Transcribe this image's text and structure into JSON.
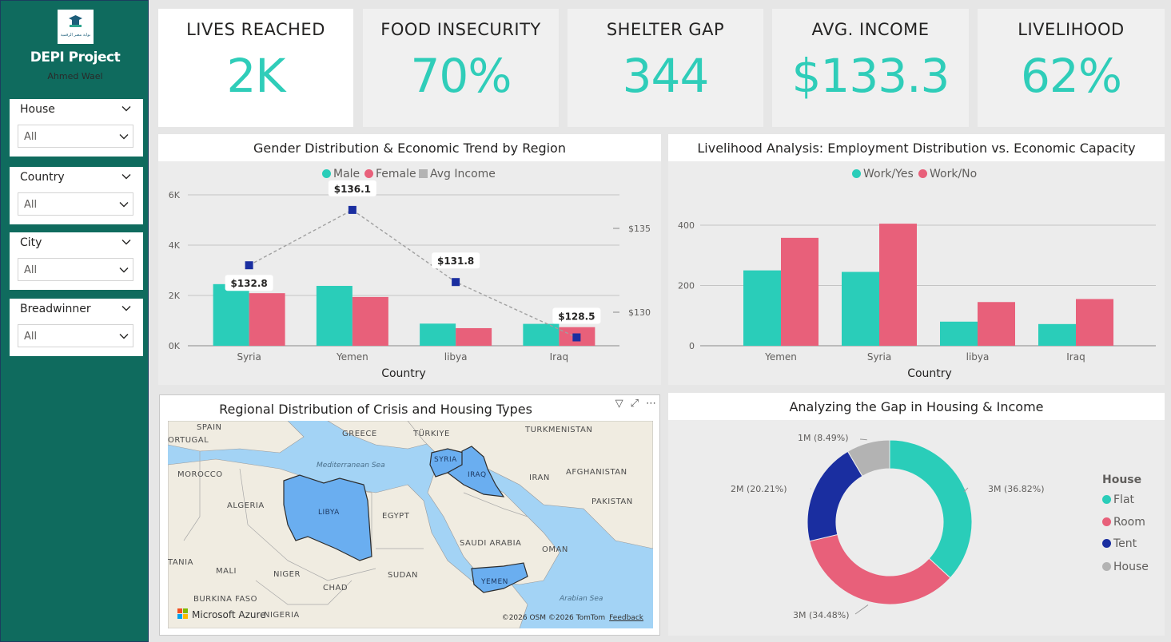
{
  "sidebar": {
    "title": "DEPI Project",
    "author": "Ahmed Wael",
    "logo_text": "بوابة مصر الرقمية",
    "slicers": [
      {
        "label": "House",
        "value": "All"
      },
      {
        "label": "Country",
        "value": "All"
      },
      {
        "label": "City",
        "value": "All"
      },
      {
        "label": "Breadwinner",
        "value": "All"
      }
    ]
  },
  "kpis": [
    {
      "label": "LIVES REACHED",
      "value": "2K"
    },
    {
      "label": "FOOD INSECURITY",
      "value": "70%"
    },
    {
      "label": "SHELTER GAP",
      "value": "344"
    },
    {
      "label": "AVG. INCOME",
      "value": "$133.3"
    },
    {
      "label": "LIVELIHOOD",
      "value": "62%"
    }
  ],
  "colors": {
    "sidebar": "#0f6b5e",
    "accent": "#2fcdb9",
    "male": "#2acdb9",
    "female": "#e8607a",
    "avg_income": "#1a2ea0",
    "tent": "#1a2ea0",
    "house": "#b3b3b3"
  },
  "chart_data": [
    {
      "type": "bar",
      "title": "Gender Distribution & Economic Trend by Region",
      "xlabel": "Country",
      "categories": [
        "Syria",
        "Yemen",
        "libya",
        "Iraq"
      ],
      "ylim": [
        0,
        6000
      ],
      "y_ticks": [
        "0K",
        "2K",
        "4K",
        "6K"
      ],
      "y2_ticks": [
        "$130",
        "$135"
      ],
      "y2lim": [
        128,
        137
      ],
      "legend": [
        "Male",
        "Female",
        "Avg Income"
      ],
      "series": [
        {
          "name": "Male",
          "values": [
            2450,
            2380,
            880,
            870
          ]
        },
        {
          "name": "Female",
          "values": [
            2090,
            1940,
            700,
            740
          ]
        },
        {
          "name": "Avg Income",
          "values": [
            132.8,
            136.1,
            131.8,
            128.5
          ],
          "labels": [
            "$132.8",
            "$136.1",
            "$131.8",
            "$128.5"
          ]
        }
      ]
    },
    {
      "type": "bar",
      "title": "Livelihood Analysis: Employment Distribution vs. Economic Capacity",
      "xlabel": "Country",
      "categories": [
        "Yemen",
        "Syria",
        "libya",
        "Iraq"
      ],
      "ylim": [
        0,
        400
      ],
      "y_ticks": [
        "0",
        "200",
        "400"
      ],
      "legend": [
        "Work/Yes",
        "Work/No"
      ],
      "series": [
        {
          "name": "Work/Yes",
          "values": [
            250,
            245,
            80,
            72
          ]
        },
        {
          "name": "Work/No",
          "values": [
            358,
            405,
            145,
            155
          ]
        }
      ]
    },
    {
      "type": "pie",
      "title": "Analyzing the Gap in Housing & Income",
      "legend_title": "House",
      "categories": [
        "Flat",
        "Room",
        "Tent",
        "House"
      ],
      "values": [
        36.82,
        34.48,
        20.21,
        8.49
      ],
      "labels": [
        "3M (36.82%)",
        "3M (34.48%)",
        "2M (20.21%)",
        "1M (8.49%)"
      ]
    }
  ],
  "map": {
    "title": "Regional Distribution of Crisis and Housing Types",
    "attribution": "©2026 OSM  ©2026 TomTom",
    "feedback": "Feedback",
    "provider": "Microsoft Azure",
    "labels": [
      "SPAIN",
      "ORTUGAL",
      "GREECE",
      "TÜRKIYE",
      "TURKMENISTAN",
      "MOROCCO",
      "Mediterranean Sea",
      "ALGERIA",
      "LIBYA",
      "EGYPT",
      "SYRIA",
      "IRAQ",
      "IRAN",
      "AFGHANISTAN",
      "PAKISTAN",
      "SAUDI ARABIA",
      "OMAN",
      "TANIA",
      "MALI",
      "NIGER",
      "SUDAN",
      "CHAD",
      "YEMEN",
      "BURKINA FASO",
      "NIGERIA",
      "Arabian Sea"
    ]
  }
}
